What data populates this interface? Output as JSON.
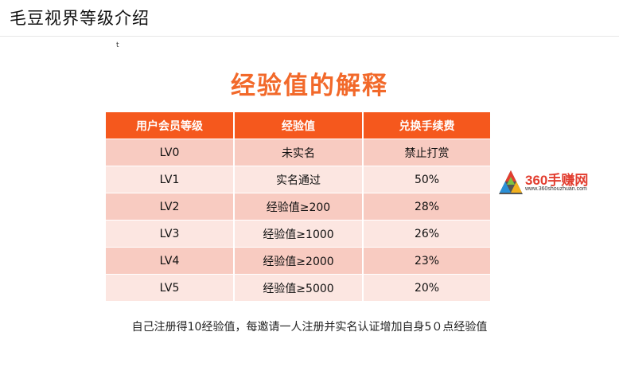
{
  "page": {
    "title": "毛豆视界等级介绍",
    "stray_mark": "t"
  },
  "heading": "经验值的解释",
  "table": {
    "headers": [
      "用户会员等级",
      "经验值",
      "兑换手续费"
    ],
    "rows": [
      [
        "LV0",
        "未实名",
        "禁止打赏"
      ],
      [
        "LV1",
        "实名通过",
        "50%"
      ],
      [
        "LV2",
        "经验值≥200",
        "28%"
      ],
      [
        "LV3",
        "经验值≥1000",
        "26%"
      ],
      [
        "LV4",
        "经验值≥2000",
        "23%"
      ],
      [
        "LV5",
        "经验值≥5000",
        "20%"
      ]
    ]
  },
  "watermark": {
    "text": "360手赚网",
    "url": "www.360shouzhuan.com"
  },
  "footnote": "自己注册得10经验值，每邀请一人注册并实名认证增加自身5０点经验值",
  "colors": {
    "heading": "#f2692a",
    "table_header": "#f5581d",
    "row_dark": "#f8cbc1",
    "row_light": "#fce6e1",
    "logo_red": "#e23d2f"
  }
}
